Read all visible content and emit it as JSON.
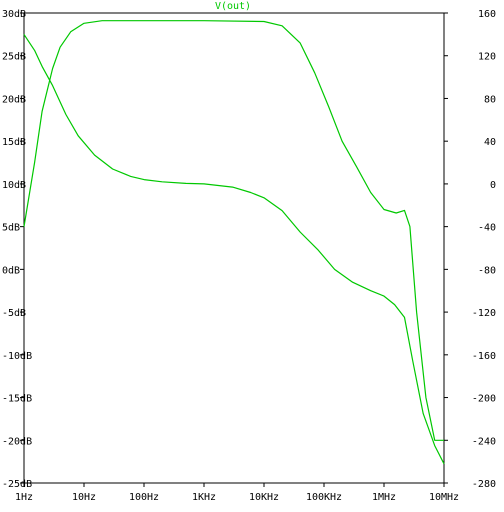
{
  "chart_data": {
    "type": "line",
    "title": "V(out)",
    "x_scale": "log",
    "x_range_hz": [
      1,
      10000000
    ],
    "x_ticks": [
      {
        "label": "1Hz",
        "value": 1
      },
      {
        "label": "10Hz",
        "value": 10
      },
      {
        "label": "100Hz",
        "value": 100
      },
      {
        "label": "1KHz",
        "value": 1000
      },
      {
        "label": "10KHz",
        "value": 10000
      },
      {
        "label": "100KHz",
        "value": 100000
      },
      {
        "label": "1MHz",
        "value": 1000000
      },
      {
        "label": "10MHz",
        "value": 10000000
      }
    ],
    "y_left": {
      "range": [
        -25,
        30
      ],
      "unit": "dB",
      "ticks": [
        {
          "label": "30dB",
          "value": 30
        },
        {
          "label": "25dB",
          "value": 25
        },
        {
          "label": "20dB",
          "value": 20
        },
        {
          "label": "15dB",
          "value": 15
        },
        {
          "label": "10dB",
          "value": 10
        },
        {
          "label": "5dB",
          "value": 5
        },
        {
          "label": "0dB",
          "value": 0
        },
        {
          "label": "-5dB",
          "value": -5
        },
        {
          "label": "-10dB",
          "value": -10
        },
        {
          "label": "-15dB",
          "value": -15
        },
        {
          "label": "-20dB",
          "value": -20
        },
        {
          "label": "-25dB",
          "value": -25
        }
      ]
    },
    "y_right": {
      "range": [
        -280,
        160
      ],
      "unit": "°",
      "ticks": [
        {
          "label": "160",
          "value": 160
        },
        {
          "label": "120",
          "value": 120
        },
        {
          "label": "80",
          "value": 80
        },
        {
          "label": "40",
          "value": 40
        },
        {
          "label": "0",
          "value": 0
        },
        {
          "label": "-40",
          "value": -40
        },
        {
          "label": "-80",
          "value": -80
        },
        {
          "label": "-120",
          "value": -120
        },
        {
          "label": "-160",
          "value": -160
        },
        {
          "label": "-200",
          "value": -200
        },
        {
          "label": "-240",
          "value": -240
        },
        {
          "label": "-280",
          "value": -280
        }
      ]
    },
    "grid": false,
    "series": [
      {
        "axis": "left",
        "color": "#00c800",
        "points": [
          [
            1,
            5.0
          ],
          [
            1.5,
            12.5
          ],
          [
            2,
            18.5
          ],
          [
            3,
            23.5
          ],
          [
            4,
            26.0
          ],
          [
            6,
            27.8
          ],
          [
            10,
            28.8
          ],
          [
            20,
            29.1
          ],
          [
            100,
            29.1
          ],
          [
            1000,
            29.1
          ],
          [
            10000,
            29.0
          ],
          [
            20000,
            28.5
          ],
          [
            40000,
            26.5
          ],
          [
            70000,
            23.0
          ],
          [
            120000,
            19.0
          ],
          [
            200000,
            15.0
          ],
          [
            350000,
            12.0
          ],
          [
            600000,
            9.0
          ],
          [
            1000000,
            7.0
          ],
          [
            1600000,
            6.6
          ],
          [
            2200000,
            6.9
          ],
          [
            2700000,
            5.0
          ],
          [
            3500000,
            -5.0
          ],
          [
            5000000,
            -15.0
          ],
          [
            7000000,
            -20.0
          ],
          [
            10000000,
            -20.0
          ]
        ]
      },
      {
        "axis": "right",
        "color": "#00c800",
        "points": [
          [
            1,
            140
          ],
          [
            1.5,
            125
          ],
          [
            2,
            110
          ],
          [
            3,
            92
          ],
          [
            5,
            65
          ],
          [
            8,
            45
          ],
          [
            15,
            27
          ],
          [
            30,
            14
          ],
          [
            60,
            7
          ],
          [
            100,
            4
          ],
          [
            200,
            2
          ],
          [
            500,
            0.5
          ],
          [
            1000,
            0
          ],
          [
            3000,
            -3
          ],
          [
            6000,
            -8
          ],
          [
            10000,
            -13
          ],
          [
            20000,
            -25
          ],
          [
            40000,
            -45
          ],
          [
            80000,
            -62
          ],
          [
            150000,
            -80
          ],
          [
            300000,
            -92
          ],
          [
            600000,
            -100
          ],
          [
            1000000,
            -105
          ],
          [
            1500000,
            -113
          ],
          [
            2200000,
            -125
          ],
          [
            3000000,
            -165
          ],
          [
            4500000,
            -215
          ],
          [
            7000000,
            -245
          ],
          [
            10000000,
            -262
          ]
        ]
      }
    ]
  }
}
